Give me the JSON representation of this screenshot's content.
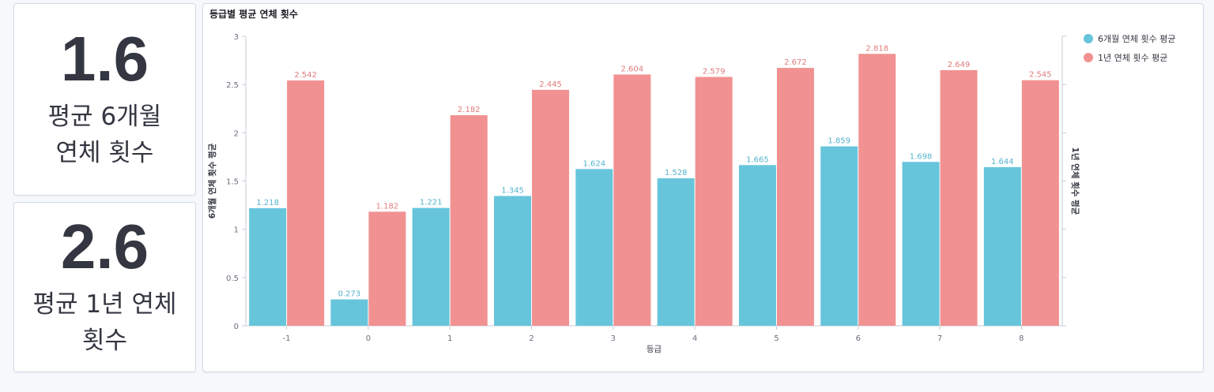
{
  "metrics": [
    {
      "value": "1.6",
      "label": "평균 6개월\n연체 횟수"
    },
    {
      "value": "2.6",
      "label": "평균 1년 연체\n횟수"
    }
  ],
  "chart_panel_title": "등급별 평균 연체 횟수",
  "chart_data": {
    "type": "bar",
    "title": "등급별 평균 연체 횟수",
    "xlabel": "등급",
    "ylabel": "6개월 연체 횟수 평균",
    "y2label": "1년 연체 횟수 평균",
    "ylim": [
      0,
      3
    ],
    "yticks": [
      "0",
      "0.5",
      "1",
      "1.5",
      "2",
      "2.5",
      "3"
    ],
    "categories": [
      "-1",
      "0",
      "1",
      "2",
      "3",
      "4",
      "5",
      "6",
      "7",
      "8"
    ],
    "series": [
      {
        "name": "6개월 연체 횟수 평균",
        "color": "#66c5db",
        "label_color": "#54b3cc",
        "values": [
          1.218,
          0.273,
          1.221,
          1.345,
          1.624,
          1.528,
          1.665,
          1.859,
          1.698,
          1.644
        ],
        "labels": [
          "1.218",
          "0.273",
          "1.221",
          "1.345",
          "1.624",
          "1.528",
          "1.665",
          "1.859",
          "1.698",
          "1.644"
        ]
      },
      {
        "name": "1년 연체 횟수 평균",
        "color": "#f19191",
        "label_color": "#e07b7b",
        "values": [
          2.542,
          1.182,
          2.182,
          2.445,
          2.604,
          2.579,
          2.672,
          2.818,
          2.649,
          2.545
        ],
        "labels": [
          "2.542",
          "1.182",
          "2.182",
          "2.445",
          "2.604",
          "2.579",
          "2.672",
          "2.818",
          "2.649",
          "2.545"
        ]
      }
    ],
    "legend_position": "top-right",
    "grid": false
  }
}
